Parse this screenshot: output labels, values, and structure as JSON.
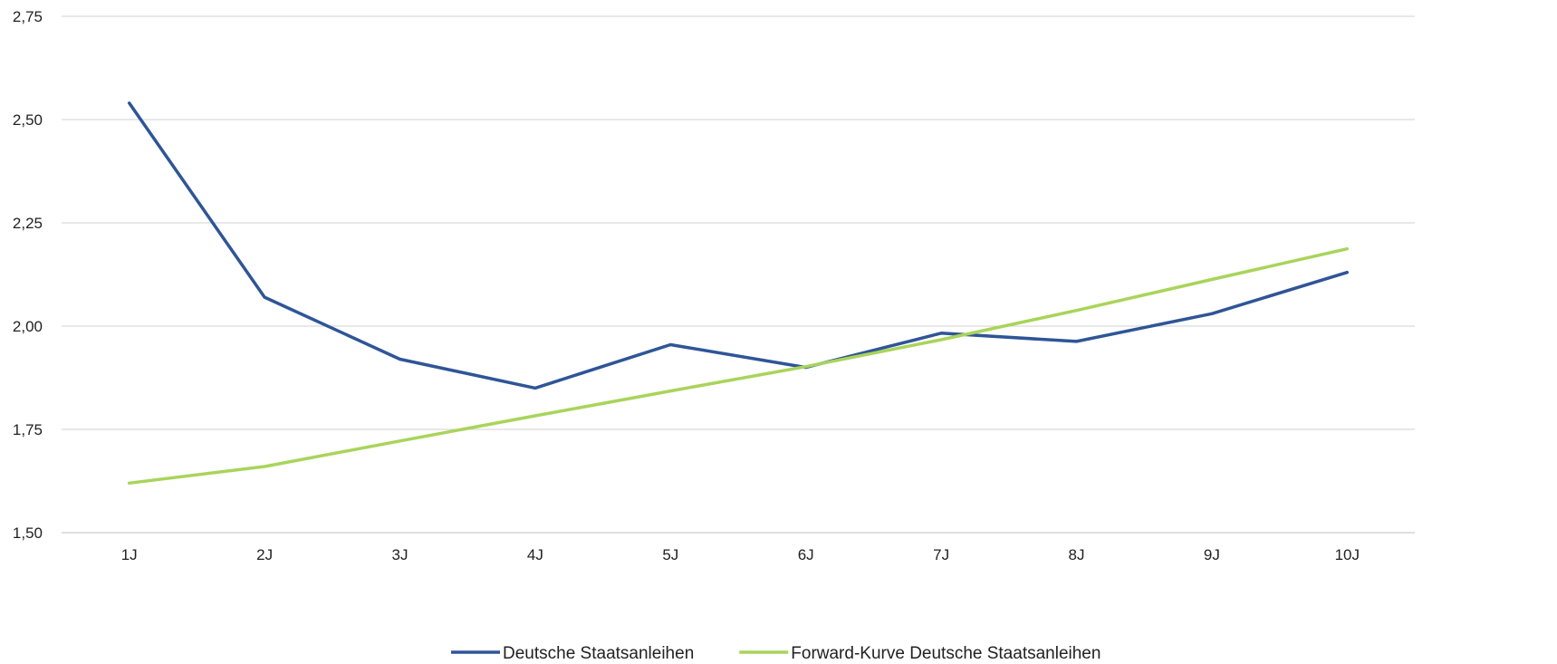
{
  "chart_data": {
    "type": "line",
    "title": "",
    "xlabel": "",
    "ylabel": "",
    "categories": [
      "1J",
      "2J",
      "3J",
      "4J",
      "5J",
      "6J",
      "7J",
      "8J",
      "9J",
      "10J"
    ],
    "ylim": [
      1.5,
      2.75
    ],
    "yticks": [
      "1,50",
      "1,75",
      "2,00",
      "2,25",
      "2,50",
      "2,75"
    ],
    "grid": true,
    "legend_position": "bottom",
    "series": [
      {
        "name": "Deutsche Staatsanleihen",
        "color": "#2F5597",
        "values": [
          2.54,
          2.07,
          1.92,
          1.85,
          1.955,
          1.9,
          1.983,
          1.963,
          2.03,
          2.13
        ]
      },
      {
        "name": "Forward-Kurve Deutsche Staatsanleihen",
        "color": "#A9D45A",
        "values": [
          1.62,
          1.66,
          1.722,
          1.783,
          1.843,
          1.902,
          1.967,
          2.038,
          2.113,
          2.187
        ]
      }
    ]
  }
}
